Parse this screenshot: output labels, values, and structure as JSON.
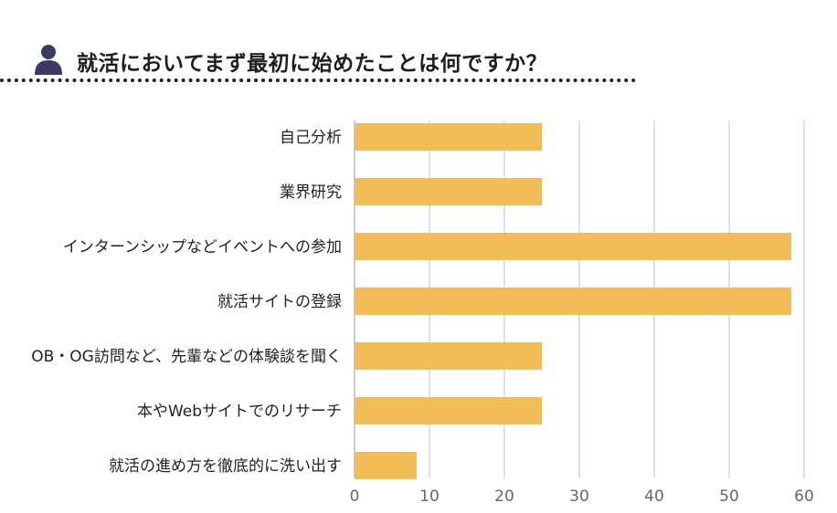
{
  "title": "就活においてまず最初に始めたことは何ですか？",
  "chart_data": {
    "type": "bar",
    "orientation": "horizontal",
    "title": "就活においてまず最初に始めたことは何ですか？",
    "categories": [
      "自己分析",
      "業界研究",
      "インターンシップなどイベントへの参加",
      "就活サイトの登録",
      "OB・OG訪問など、先輩などの体験談を聞く",
      "本やWebサイトでのリサーチ",
      "就活の進め方を徹底的に洗い出す"
    ],
    "values": [
      25,
      25,
      58.3,
      58.3,
      25,
      25,
      8.3
    ],
    "xlim": [
      0,
      60
    ],
    "xticks": [
      0,
      10,
      20,
      30,
      40,
      50,
      60
    ],
    "grid": true,
    "bar_color": "#F2BD57",
    "grid_color": "#D6D6D6",
    "axis_color": "#BBBBBB"
  },
  "colors": {
    "title_text": "#1E1E1E",
    "icon": "#3A3A66"
  }
}
